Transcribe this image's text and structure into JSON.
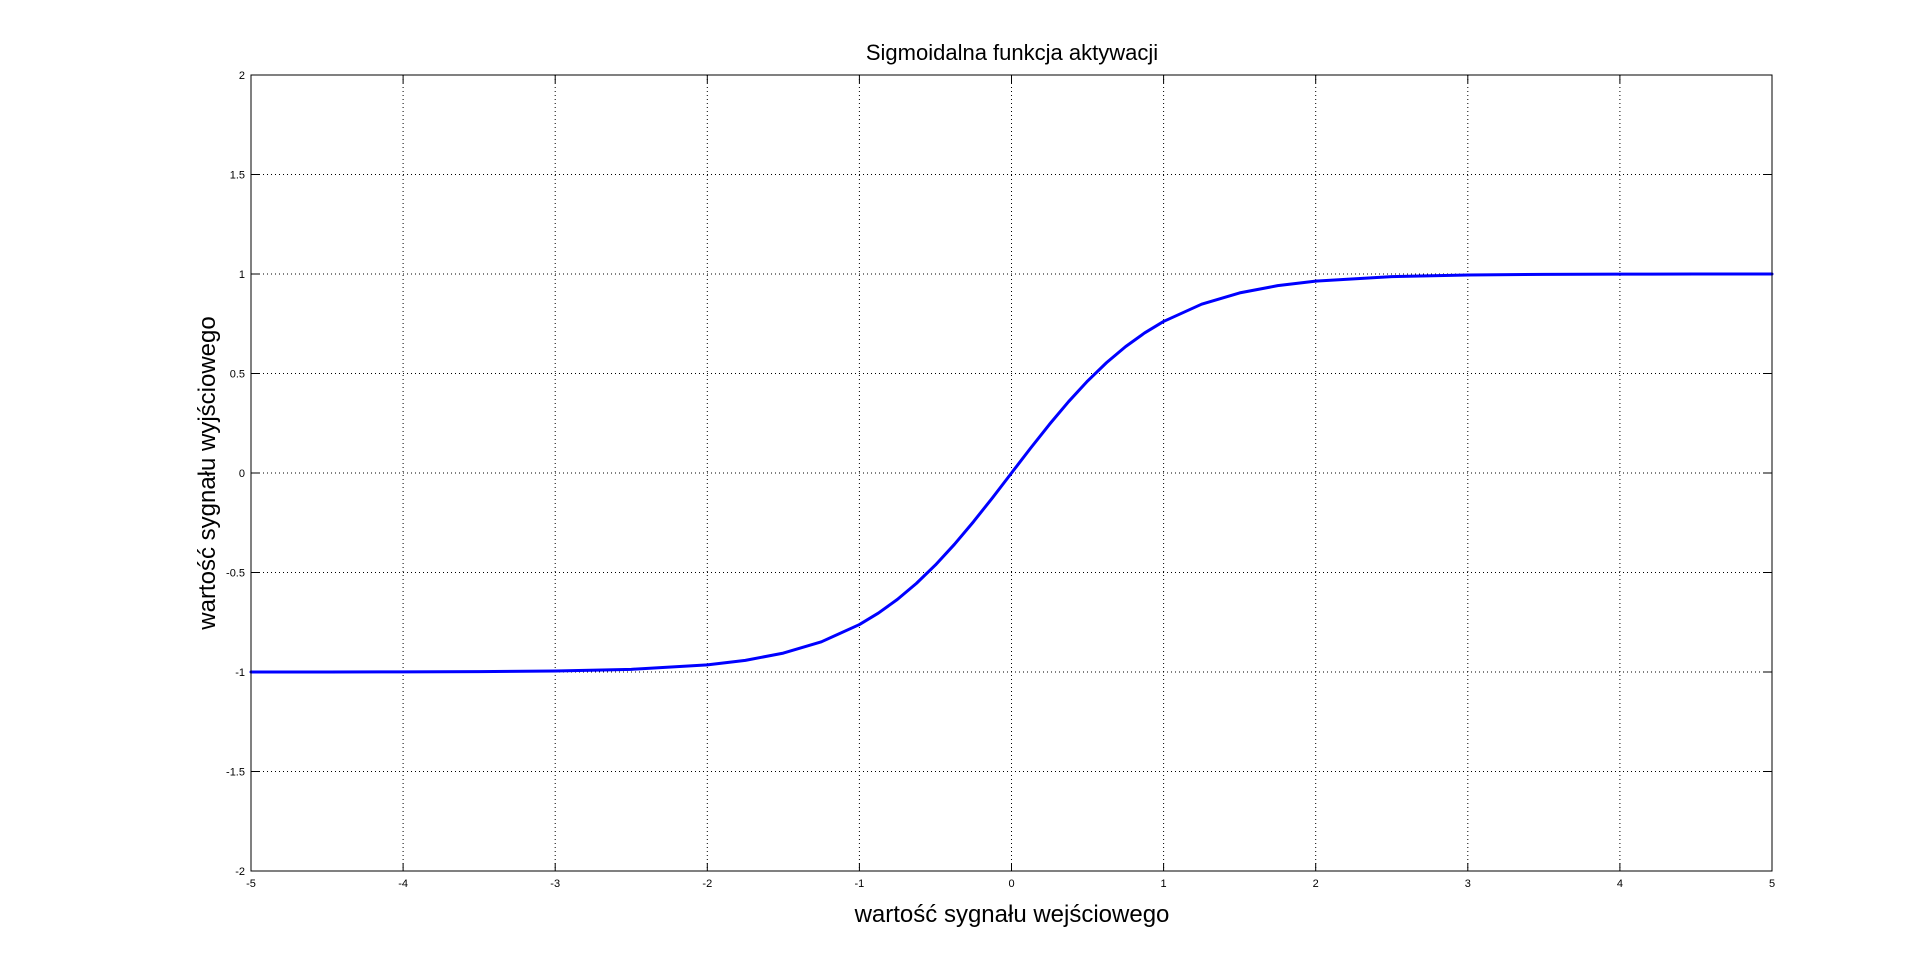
{
  "chart_data": {
    "type": "line",
    "title": "Sigmoidalna funkcja aktywacji",
    "xlabel": "wartość sygnału wejściowego",
    "ylabel": "wartość sygnału wyjściowego",
    "xlim": [
      -5,
      5
    ],
    "ylim": [
      -2,
      2
    ],
    "x_ticks": [
      "-5",
      "-4",
      "-3",
      "-2",
      "-1",
      "0",
      "1",
      "2",
      "3",
      "4",
      "5"
    ],
    "y_ticks": [
      "2",
      "1.5",
      "1",
      "0.5",
      "0",
      "-0.5",
      "-1",
      "-1.5",
      "-2"
    ],
    "grid": true,
    "grid_style": "dotted",
    "series": [
      {
        "function": "tanh(x)",
        "color": "#0000ff",
        "x": [
          -5,
          -4.5,
          -4,
          -3.5,
          -3,
          -2.5,
          -2,
          -1.75,
          -1.5,
          -1.25,
          -1,
          -0.875,
          -0.75,
          -0.625,
          -0.5,
          -0.375,
          -0.25,
          -0.125,
          0,
          0.125,
          0.25,
          0.375,
          0.5,
          0.625,
          0.75,
          0.875,
          1,
          1.25,
          1.5,
          1.75,
          2,
          2.5,
          3,
          3.5,
          4,
          4.5,
          5
        ],
        "y": [
          -0.9999,
          -0.9998,
          -0.9993,
          -0.9982,
          -0.9951,
          -0.9866,
          -0.964,
          -0.9414,
          -0.9051,
          -0.8483,
          -0.7616,
          -0.7039,
          -0.6351,
          -0.5546,
          -0.4621,
          -0.3584,
          -0.2449,
          -0.1244,
          0,
          0.1244,
          0.2449,
          0.3584,
          0.4621,
          0.5546,
          0.6351,
          0.7039,
          0.7616,
          0.8483,
          0.9051,
          0.9414,
          0.964,
          0.9866,
          0.9951,
          0.9982,
          0.9993,
          0.9998,
          0.9999
        ]
      }
    ]
  }
}
